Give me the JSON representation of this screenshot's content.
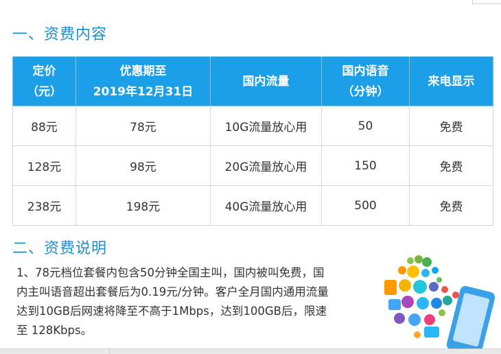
{
  "section1": {
    "title": "一、资费内容"
  },
  "table": {
    "headers": [
      [
        "定价",
        "（元）"
      ],
      [
        "优惠期至",
        "2019年12月31日"
      ],
      [
        "国内流量"
      ],
      [
        "国内语音",
        "（分钟）"
      ],
      [
        "来电显示"
      ]
    ],
    "rows": [
      [
        "88元",
        "78元",
        "10G流量放心用",
        "50",
        "免费"
      ],
      [
        "128元",
        "98元",
        "20G流量放心用",
        "150",
        "免费"
      ],
      [
        "238元",
        "198元",
        "40G流量放心用",
        "500",
        "免费"
      ]
    ]
  },
  "section2": {
    "title": "二、资费说明",
    "lines": [
      "1、78元档位套餐内包含50分钟全国主叫，国内被叫免费，国",
      "内主叫语音超出套餐后为0.19元/分钟。客户全月国内通用流量",
      "达到10GB后网速将降至不高于1Mbps，达到100GB后，限速",
      "至 128Kbps。"
    ]
  },
  "colors": {
    "accent": "#1a9fe8",
    "title": "#1a8fd6"
  },
  "illustration": {
    "icon": "smartphone-with-app-icons"
  }
}
